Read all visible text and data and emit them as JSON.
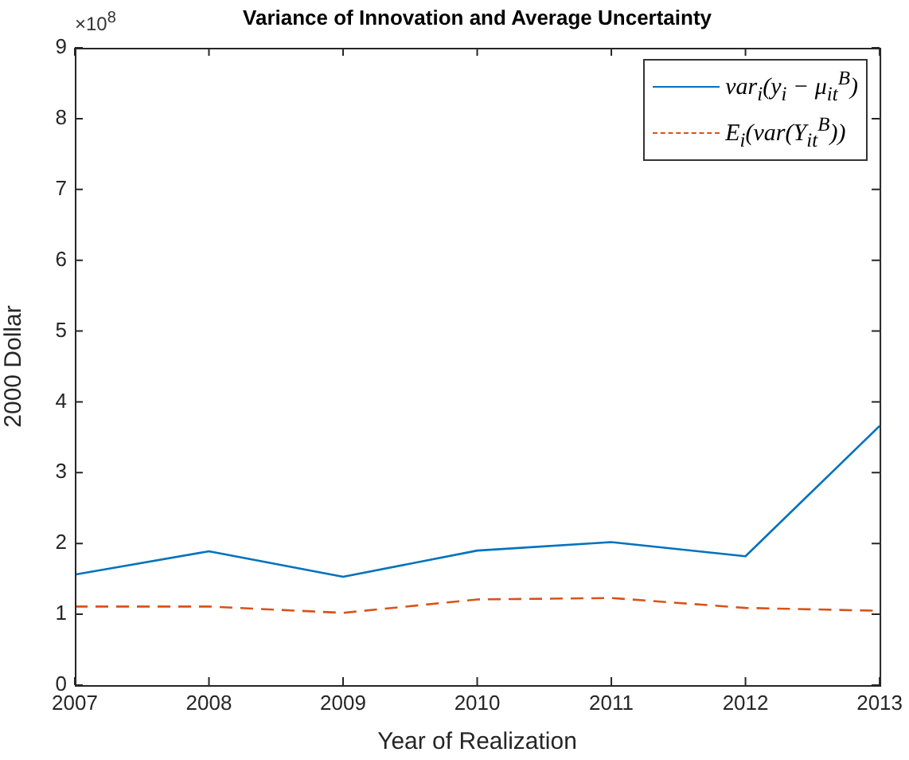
{
  "chart_data": {
    "type": "line",
    "title": "Variance of Innovation and Average Uncertainty",
    "xlabel": "Year of Realization",
    "ylabel": "2000 Dollar",
    "annotations": [
      "×10$^{8}$"
    ],
    "x": [
      2007,
      2008,
      2009,
      2010,
      2011,
      2012,
      2013
    ],
    "xlim": [
      2007,
      2013
    ],
    "xticks": [
      2007,
      2008,
      2009,
      2010,
      2011,
      2012,
      2013
    ],
    "ylim": [
      0,
      9
    ],
    "yticks": [
      0,
      1,
      2,
      3,
      4,
      5,
      6,
      7,
      8,
      9
    ],
    "grid": false,
    "legend": "top right",
    "marker": "none",
    "series": [
      {
        "name": "var$_{i}$(y$_{i}$ − μ$_{it}$$^{B}$)",
        "color": "#0072bd",
        "line_style": "solid",
        "values": [
          1.56,
          1.89,
          1.53,
          1.9,
          2.02,
          1.82,
          3.66
        ]
      },
      {
        "name": "E$_{i}$(var(Y$_{it}$$^{B}$))",
        "color": "#d95319",
        "line_style": "dashed",
        "values": [
          1.11,
          1.11,
          1.02,
          1.21,
          1.23,
          1.09,
          1.05
        ]
      }
    ]
  }
}
